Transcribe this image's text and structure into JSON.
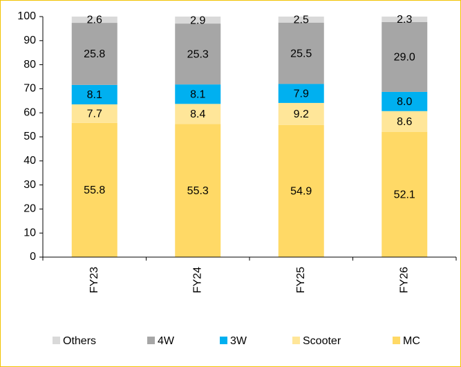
{
  "chart_data": {
    "type": "stacked_bar",
    "categories": [
      "FY23",
      "FY24",
      "FY25",
      "FY26"
    ],
    "series": [
      {
        "name": "MC",
        "color": "#FFD966",
        "values": [
          55.8,
          55.3,
          54.9,
          52.1
        ],
        "value_labels": [
          "55.8",
          "55.3",
          "54.9",
          "52.1"
        ]
      },
      {
        "name": "Scooter",
        "color": "#FFE699",
        "values": [
          7.7,
          8.4,
          9.2,
          8.6
        ],
        "value_labels": [
          "7.7",
          "8.4",
          "9.2",
          "8.6"
        ]
      },
      {
        "name": "3W",
        "color": "#00B0F0",
        "values": [
          8.1,
          8.1,
          7.9,
          8.0
        ],
        "value_labels": [
          "8.1",
          "8.1",
          "7.9",
          "8.0"
        ]
      },
      {
        "name": "4W",
        "color": "#A6A6A6",
        "values": [
          25.8,
          25.3,
          25.5,
          29.0
        ],
        "value_labels": [
          "25.8",
          "25.3",
          "25.5",
          "29.0"
        ]
      },
      {
        "name": "Others",
        "color": "#D9D9D9",
        "values": [
          2.6,
          2.9,
          2.5,
          2.3
        ],
        "value_labels": [
          "2.6",
          "2.9",
          "2.5",
          "2.3"
        ]
      }
    ],
    "ylim": [
      0,
      100
    ],
    "yticks": [
      0,
      10,
      20,
      30,
      40,
      50,
      60,
      70,
      80,
      90,
      100
    ],
    "legend": "bottom"
  }
}
